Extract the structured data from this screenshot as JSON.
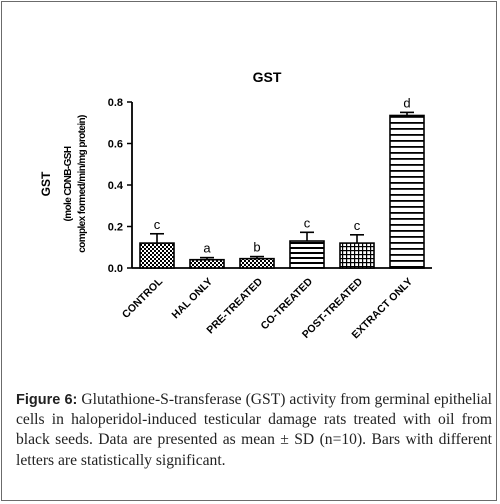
{
  "chart_data": {
    "type": "bar",
    "title": "GST",
    "ylabel_line1": "GST",
    "ylabel_line2": "(mole CDNB-GSH",
    "ylabel_line3": "complex formed/min/mg protein)",
    "categories": [
      "CONTROL",
      "HAL ONLY",
      "PRE-TREATED",
      "CO-TREATED",
      "POST-TREATED",
      "EXTRACT ONLY"
    ],
    "values": [
      0.12,
      0.04,
      0.045,
      0.13,
      0.12,
      0.735
    ],
    "errors": [
      0.045,
      0.01,
      0.01,
      0.042,
      0.04,
      0.015
    ],
    "letters": [
      "c",
      "a",
      "b",
      "c",
      "c",
      "d"
    ],
    "patterns": [
      "checker",
      "checker",
      "checker",
      "hlines",
      "grid",
      "hlines-wide"
    ],
    "ylim": [
      0,
      0.8
    ],
    "yticks": [
      "0.0",
      "0.2",
      "0.4",
      "0.6",
      "0.8"
    ],
    "grid": false,
    "legend": "none"
  },
  "caption": {
    "label": "Figure 6:",
    "text": " Glutathione-S-transferase (GST) activity from germinal epithelial cells in haloperidol-induced testicular damage rats treated with oil from black seeds. Data are presented as mean ± SD (n=10). Bars with different letters are statistically significant."
  }
}
